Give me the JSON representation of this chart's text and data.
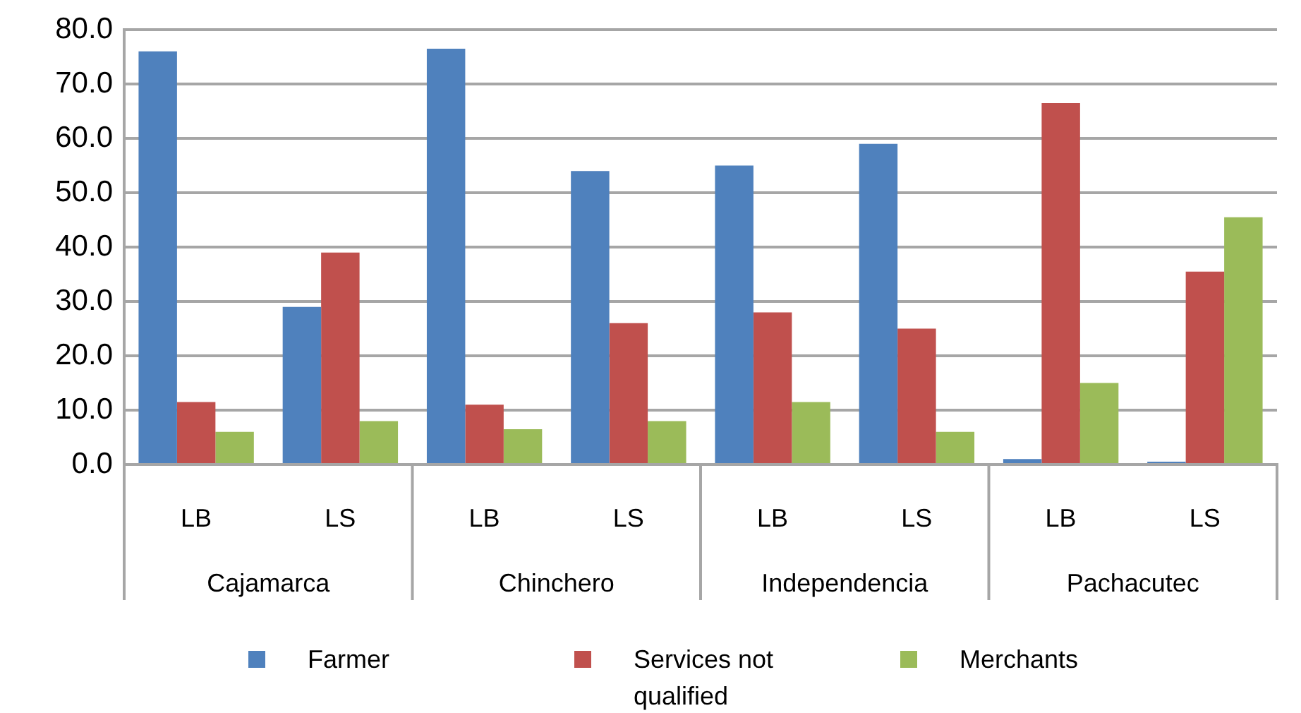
{
  "chart_data": {
    "type": "bar",
    "categories": [
      "LB",
      "LS",
      "LB",
      "LS",
      "LB",
      "LS",
      "LB",
      "LS"
    ],
    "series": [
      {
        "name": "Farmer",
        "color": "#4f81bd",
        "values": [
          76,
          29,
          76.5,
          54,
          55,
          59,
          1,
          0
        ]
      },
      {
        "name": "Services not qualified",
        "color": "#c0504d",
        "values": [
          11.5,
          39,
          11,
          26,
          28,
          25,
          66.5,
          35.5
        ]
      },
      {
        "name": "Merchants",
        "color": "#9bbb59",
        "values": [
          6,
          8,
          6.5,
          8,
          11.5,
          6,
          15,
          45.5
        ]
      }
    ],
    "ylim": [
      0,
      80
    ],
    "yticks": [
      {
        "value": 0,
        "label": "0.0"
      },
      {
        "value": 10,
        "label": "10.0"
      },
      {
        "value": 20,
        "label": "20.0"
      },
      {
        "value": 30,
        "label": "30.0"
      },
      {
        "value": 40,
        "label": "40.0"
      },
      {
        "value": 50,
        "label": "50.0"
      },
      {
        "value": 60,
        "label": "60.0"
      },
      {
        "value": 70,
        "label": "70.0"
      },
      {
        "value": 80,
        "label": "80.0"
      }
    ],
    "grid": "y",
    "legend": "bottom",
    "annotations": [
      "Cajamarca",
      "Chinchero",
      "Independencia",
      "Pachacutec"
    ]
  }
}
